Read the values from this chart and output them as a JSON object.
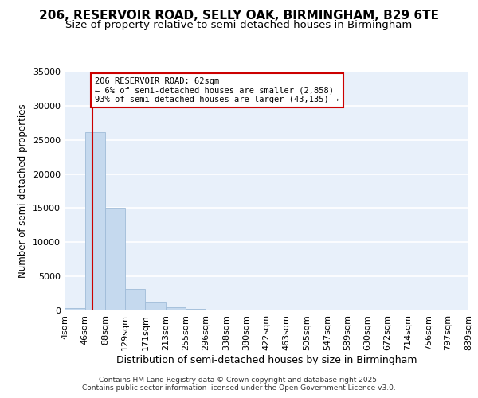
{
  "title1": "206, RESERVOIR ROAD, SELLY OAK, BIRMINGHAM, B29 6TE",
  "title2": "Size of property relative to semi-detached houses in Birmingham",
  "xlabel": "Distribution of semi-detached houses by size in Birmingham",
  "ylabel": "Number of semi-detached properties",
  "property_size": 62,
  "property_label": "206 RESERVOIR ROAD: 62sqm",
  "smaller_pct": "6%",
  "smaller_count": "2,858",
  "larger_pct": "93%",
  "larger_count": "43,135",
  "bin_edges": [
    4,
    46,
    88,
    129,
    171,
    213,
    255,
    296,
    338,
    380,
    422,
    463,
    505,
    547,
    589,
    630,
    672,
    714,
    756,
    797,
    839
  ],
  "bin_labels": [
    "4sqm",
    "46sqm",
    "88sqm",
    "129sqm",
    "171sqm",
    "213sqm",
    "255sqm",
    "296sqm",
    "338sqm",
    "380sqm",
    "422sqm",
    "463sqm",
    "505sqm",
    "547sqm",
    "589sqm",
    "630sqm",
    "672sqm",
    "714sqm",
    "756sqm",
    "797sqm",
    "839sqm"
  ],
  "counts": [
    400,
    26100,
    15100,
    3200,
    1200,
    450,
    200,
    0,
    0,
    0,
    0,
    0,
    0,
    0,
    0,
    0,
    0,
    0,
    0,
    0
  ],
  "bar_color": "#c5d9ee",
  "bar_edge_color": "#a0bcd8",
  "vline_color": "#cc0000",
  "annotation_box_color": "#cc0000",
  "plot_bg_color": "#e8f0fa",
  "fig_bg_color": "#ffffff",
  "grid_color": "#ffffff",
  "ylim": [
    0,
    35000
  ],
  "yticks": [
    0,
    5000,
    10000,
    15000,
    20000,
    25000,
    30000,
    35000
  ],
  "footer": "Contains HM Land Registry data © Crown copyright and database right 2025.\nContains public sector information licensed under the Open Government Licence v3.0.",
  "title_fontsize": 11,
  "subtitle_fontsize": 9.5,
  "tick_fontsize": 8,
  "ylabel_fontsize": 8.5,
  "xlabel_fontsize": 9
}
